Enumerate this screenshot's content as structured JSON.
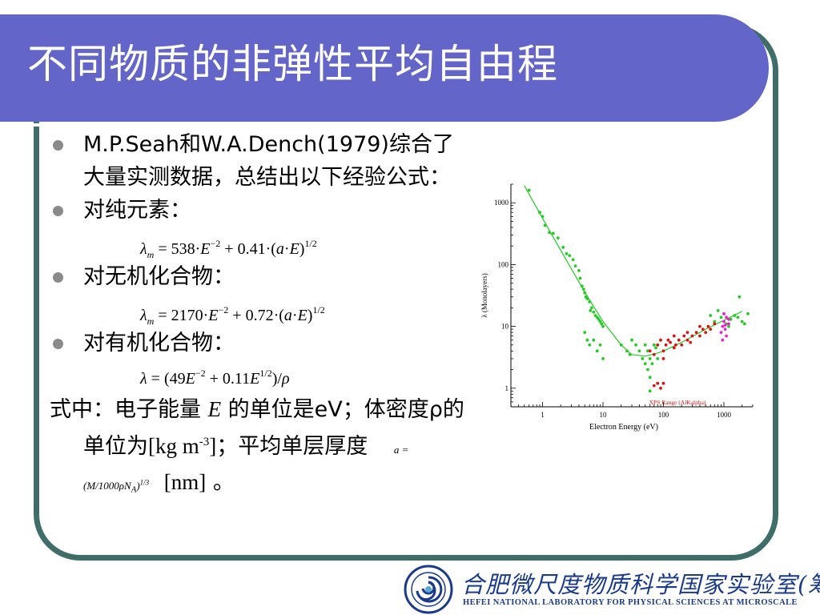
{
  "slide": {
    "title": "不同物质的非弹性平均自由程",
    "bullets": [
      {
        "text": "M.P.Seah和W.A.Dench(1979)综合了大量实测数据，总结出以下经验公式："
      },
      {
        "text": "对纯元素："
      },
      {
        "text": "对无机化合物："
      },
      {
        "text": "对有机化合物："
      }
    ],
    "formulas": {
      "pure": {
        "lambda": "λ",
        "sub": "m",
        "eq": " = 538·",
        "E": "E",
        "exp1": "−2",
        "mid": " + 0.41·(",
        "a": "a",
        "dot": "·",
        "E2": "E",
        "close": ")",
        "exp2": "1/2"
      },
      "inorganic": {
        "lambda": "λ",
        "sub": "m",
        "eq": " = 2170·",
        "E": "E",
        "exp1": "−2",
        "mid": " + 0.72·(",
        "a": "a",
        "dot": "·",
        "E2": "E",
        "close": ")",
        "exp2": "1/2"
      },
      "organic": {
        "lambda": "λ",
        "eq": " = (49",
        "E": "E",
        "exp1": "−2",
        "mid": " + 0.11",
        "E2": "E",
        "exp2": "1/2",
        "close": ")/",
        "rho": "ρ"
      }
    },
    "note": {
      "line1_pre": "式中：电子能量 ",
      "E": "E",
      "line1_post": " 的单位是eV；体密度ρ的单位为",
      "unit1": "[kg m",
      "unit1_exp": "-3",
      "unit1_close": "]",
      "line2": "；平均单层厚度",
      "a_formula": "a = (M/1000ρN",
      "a_sub": "A",
      "a_close": ")",
      "a_exp": "1/3",
      "unit2": "[nm]",
      "end": "。"
    }
  },
  "chart_data": {
    "type": "scatter",
    "xlabel": "Electron Energy (eV)",
    "ylabel": "λ (Monolayers)",
    "xscale": "log",
    "yscale": "log",
    "xlim": [
      0.3,
      3000
    ],
    "ylim": [
      0.5,
      2000
    ],
    "x_ticks": [
      "1",
      "10",
      "100",
      "1000"
    ],
    "y_ticks": [
      "1",
      "10",
      "100",
      "1000"
    ],
    "annotation": "XPS Range (AlKalpha)",
    "colors": {
      "green": "#22cc22",
      "red": "#dd1111",
      "magenta": "#ee22cc",
      "curve": "#22cc22",
      "annotation": "#dd1111"
    },
    "curve": {
      "x": [
        0.5,
        1,
        2,
        5,
        10,
        20,
        30,
        50,
        80,
        100,
        200,
        500,
        1000,
        2000
      ],
      "y": [
        1900,
        560,
        170,
        36,
        12,
        5.0,
        3.5,
        3.3,
        3.7,
        4.0,
        5.5,
        9.0,
        12.5,
        17.5
      ]
    },
    "series": [
      {
        "color": "green",
        "points": [
          [
            0.6,
            1600
          ],
          [
            0.9,
            700
          ],
          [
            1.0,
            600
          ],
          [
            1.1,
            430
          ],
          [
            1.3,
            330
          ],
          [
            1.5,
            320
          ],
          [
            1.8,
            270
          ],
          [
            2.2,
            190
          ],
          [
            2.5,
            150
          ],
          [
            2.8,
            140
          ],
          [
            3.2,
            120
          ],
          [
            3.5,
            95
          ],
          [
            4.0,
            80
          ],
          [
            4.2,
            60
          ],
          [
            4.5,
            45
          ],
          [
            4.8,
            40
          ],
          [
            5.0,
            35
          ],
          [
            5.2,
            30
          ],
          [
            5.5,
            28
          ],
          [
            6.0,
            25
          ],
          [
            6.2,
            18
          ],
          [
            6.5,
            20
          ],
          [
            7.0,
            17
          ],
          [
            7.5,
            15
          ],
          [
            8.0,
            14
          ],
          [
            8.5,
            13
          ],
          [
            9.0,
            12
          ],
          [
            9.5,
            11
          ],
          [
            10,
            10
          ],
          [
            5.0,
            8
          ],
          [
            5.5,
            6
          ],
          [
            6.0,
            5
          ],
          [
            7.0,
            6
          ],
          [
            8.0,
            4
          ],
          [
            9.0,
            5
          ],
          [
            10,
            3
          ],
          [
            20,
            5
          ],
          [
            25,
            4
          ],
          [
            28,
            3.5
          ],
          [
            30,
            6
          ],
          [
            35,
            5
          ],
          [
            40,
            4
          ],
          [
            45,
            3
          ],
          [
            50,
            2.5
          ],
          [
            50,
            5
          ],
          [
            55,
            4
          ],
          [
            55,
            2
          ],
          [
            60,
            3
          ],
          [
            60,
            1.5
          ],
          [
            60,
            0.9
          ],
          [
            65,
            2.5
          ],
          [
            70,
            5
          ],
          [
            75,
            4.5
          ],
          [
            80,
            3
          ],
          [
            600,
            15
          ],
          [
            700,
            12
          ],
          [
            800,
            18
          ],
          [
            900,
            14
          ],
          [
            1000,
            16
          ],
          [
            1100,
            11
          ],
          [
            1200,
            10
          ],
          [
            1300,
            13
          ],
          [
            1500,
            15
          ],
          [
            1700,
            14
          ],
          [
            1800,
            30
          ],
          [
            2000,
            12
          ],
          [
            2200,
            11
          ],
          [
            2500,
            16
          ]
        ]
      },
      {
        "color": "red",
        "points": [
          [
            60,
            4
          ],
          [
            70,
            3.5
          ],
          [
            80,
            5
          ],
          [
            90,
            6
          ],
          [
            100,
            4
          ],
          [
            100,
            3
          ],
          [
            110,
            5
          ],
          [
            120,
            6
          ],
          [
            130,
            5.5
          ],
          [
            150,
            4.5
          ],
          [
            150,
            7
          ],
          [
            160,
            5
          ],
          [
            180,
            6
          ],
          [
            200,
            5
          ],
          [
            220,
            7
          ],
          [
            250,
            6
          ],
          [
            250,
            8
          ],
          [
            280,
            5.5
          ],
          [
            300,
            7
          ],
          [
            350,
            8
          ],
          [
            400,
            7
          ],
          [
            400,
            10
          ],
          [
            450,
            9
          ],
          [
            500,
            8
          ],
          [
            550,
            10
          ],
          [
            600,
            9
          ],
          [
            700,
            11
          ],
          [
            80,
            1.2
          ],
          [
            90,
            1.0
          ],
          [
            100,
            1.2
          ],
          [
            70,
            1.1
          ]
        ]
      },
      {
        "color": "magenta",
        "points": [
          [
            900,
            8
          ],
          [
            950,
            10
          ],
          [
            1000,
            12
          ],
          [
            1050,
            9
          ],
          [
            1100,
            14
          ],
          [
            1100,
            7
          ],
          [
            1200,
            11
          ],
          [
            1200,
            13
          ],
          [
            1000,
            16
          ],
          [
            950,
            6
          ],
          [
            1050,
            10.5
          ]
        ]
      }
    ]
  },
  "footer": {
    "lab_cn": "合肥微尺度物质科学国家实验室(筹)",
    "lab_en": "HEFEI NATIONAL LABORATORY FOR PHYSICAL SCIENCES AT MICROSCALE"
  }
}
